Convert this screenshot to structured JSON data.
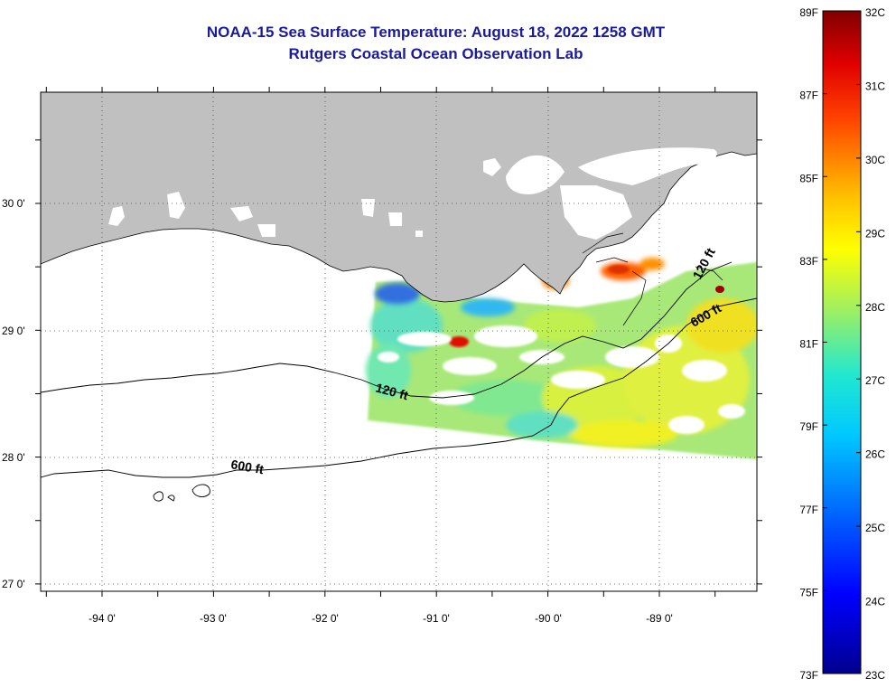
{
  "title_line1": "NOAA-15 Sea Surface Temperature:  August 18, 2022 1258 GMT",
  "title_line2": "Rutgers Coastal Ocean Observation Lab",
  "map": {
    "lon_labels": [
      "-94 0'",
      "-93 0'",
      "-92 0'",
      "-91 0'",
      "-90 0'",
      "-89 0'"
    ],
    "lat_labels": [
      "30 0'",
      "29 0'",
      "28 0'",
      "27 0'"
    ],
    "contour_labels": [
      "120 ft",
      "600 ft",
      "120 ft",
      "600 ft"
    ],
    "colors": {
      "land": "#c0c0c0",
      "cloud": "#ffffff",
      "coastline": "#000000"
    }
  },
  "colorbar": {
    "fahrenheit_labels": [
      "89F",
      "87F",
      "85F",
      "83F",
      "81F",
      "79F",
      "77F",
      "75F",
      "73F"
    ],
    "celsius_labels": [
      "32C",
      "31C",
      "30C",
      "29C",
      "28C",
      "27C",
      "26C",
      "25C",
      "24C",
      "23C"
    ],
    "range_c": [
      23,
      32
    ],
    "colormap": "jet"
  }
}
